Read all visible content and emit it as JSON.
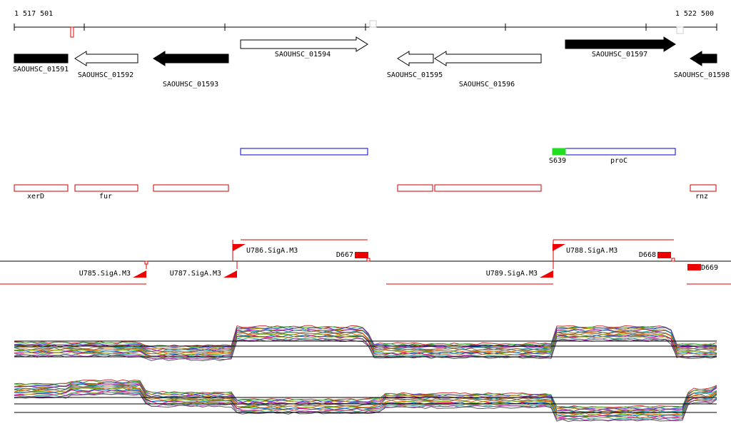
{
  "ruler": {
    "start": "1 517 501",
    "end": "1 522 500"
  },
  "genes": [
    "SAOUHSC_01591",
    "SAOUHSC_01592",
    "SAOUHSC_01593",
    "SAOUHSC_01594",
    "SAOUHSC_01595",
    "SAOUHSC_01596",
    "SAOUHSC_01597",
    "SAOUHSC_01598"
  ],
  "features": {
    "blue": [
      "proC"
    ],
    "green": [
      "S639"
    ],
    "red": [
      "xerD",
      "fur",
      "rnz"
    ]
  },
  "promoters": [
    "U785.SigA.M3",
    "U786.SigA.M3",
    "U787.SigA.M3",
    "U788.SigA.M3",
    "U789.SigA.M3"
  ],
  "terminators": [
    "D667",
    "D668",
    "D669"
  ]
}
